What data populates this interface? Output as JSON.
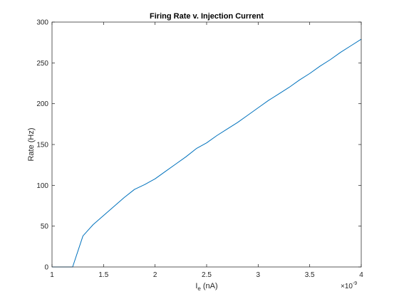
{
  "chart_data": {
    "type": "line",
    "title": "Firing Rate v. Injection Current",
    "xlabel_main": "I",
    "xlabel_sub": "e",
    "xlabel_unit": " (nA)",
    "ylabel": "Rate (Hz)",
    "x_exponent_base": "×10",
    "x_exponent_power": "-9",
    "xlim": [
      1.0,
      4.0
    ],
    "ylim": [
      0,
      300
    ],
    "x_ticks": [
      1,
      1.5,
      2,
      2.5,
      3,
      3.5,
      4
    ],
    "x_tick_labels": [
      "1",
      "1.5",
      "2",
      "2.5",
      "3",
      "3.5",
      "4"
    ],
    "y_ticks": [
      0,
      50,
      100,
      150,
      200,
      250,
      300
    ],
    "y_tick_labels": [
      "0",
      "50",
      "100",
      "150",
      "200",
      "250",
      "300"
    ],
    "grid": false,
    "line_color": "#0072BD",
    "series": [
      {
        "x": [
          1.0,
          1.1,
          1.2,
          1.3,
          1.4,
          1.5,
          1.6,
          1.7,
          1.8,
          1.9,
          2.0,
          2.1,
          2.2,
          2.3,
          2.4,
          2.5,
          2.6,
          2.7,
          2.8,
          2.9,
          3.0,
          3.1,
          3.2,
          3.3,
          3.4,
          3.5,
          3.6,
          3.7,
          3.8,
          3.9,
          4.0
        ],
        "values": [
          0,
          0,
          0,
          38,
          52,
          63,
          74,
          85,
          95,
          101,
          108,
          117,
          126,
          135,
          145,
          152,
          161,
          169,
          177,
          186,
          195,
          204,
          212,
          220,
          229,
          237,
          246,
          254,
          263,
          271,
          279
        ]
      }
    ]
  }
}
